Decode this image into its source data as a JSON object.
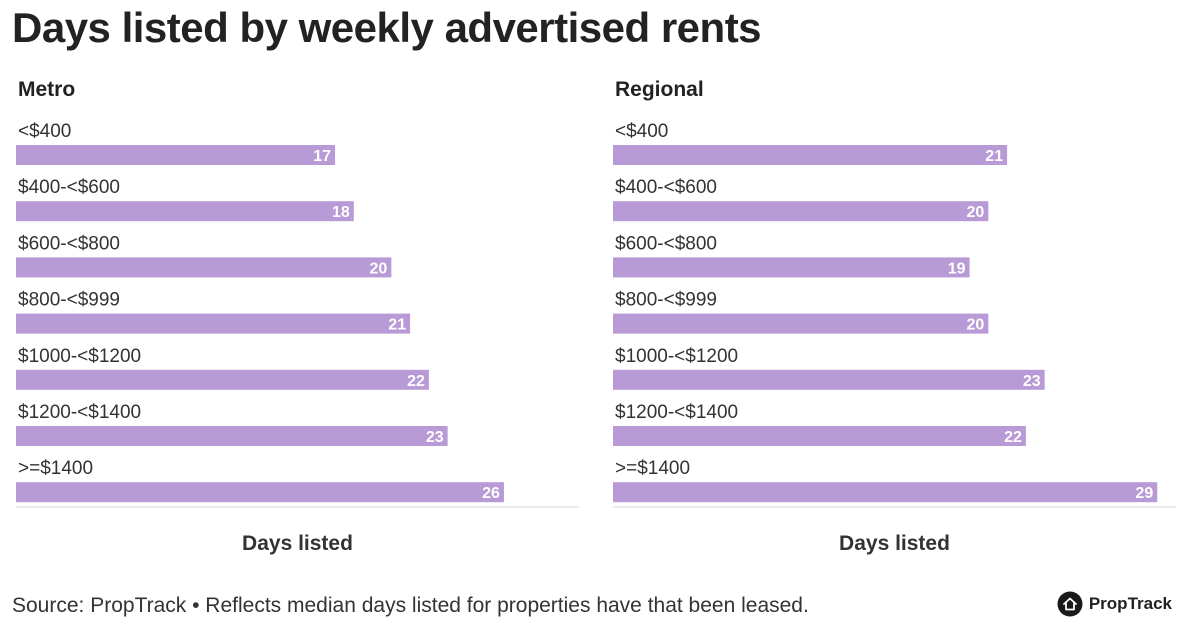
{
  "title": "Days listed by weekly advertised rents",
  "source": "Source: PropTrack • Reflects median days listed for properties have that been leased.",
  "brand": {
    "name": "PropTrack",
    "icon": "house-icon"
  },
  "colors": {
    "bar": "#b89ad6",
    "text": "#333333",
    "axis": "#e3e3e3"
  },
  "chart_data": [
    {
      "type": "bar",
      "orientation": "horizontal",
      "title": "Metro",
      "xlabel": "Days listed",
      "categories": [
        "<$400",
        "$400-<$600",
        "$600-<$800",
        "$800-<$999",
        "$1000-<$1200",
        "$1200-<$1400",
        ">=$1400"
      ],
      "values": [
        17,
        18,
        20,
        21,
        22,
        23,
        26
      ],
      "xlim": [
        0,
        30
      ],
      "grid": false,
      "data_labels": true
    },
    {
      "type": "bar",
      "orientation": "horizontal",
      "title": "Regional",
      "xlabel": "Days listed",
      "categories": [
        "<$400",
        "$400-<$600",
        "$600-<$800",
        "$800-<$999",
        "$1000-<$1200",
        "$1200-<$1400",
        ">=$1400"
      ],
      "values": [
        21,
        20,
        19,
        20,
        23,
        22,
        29
      ],
      "xlim": [
        0,
        30
      ],
      "grid": false,
      "data_labels": true
    }
  ]
}
